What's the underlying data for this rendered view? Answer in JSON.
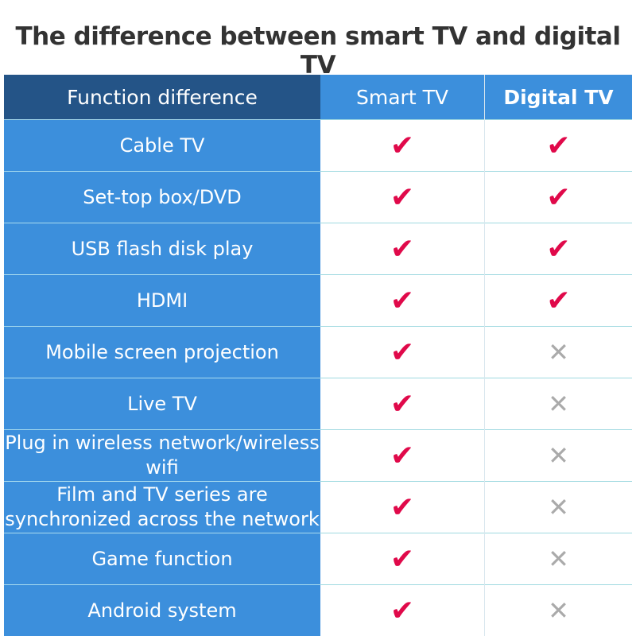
{
  "title": "The difference between smart TV and digital TV",
  "headers": [
    "Function difference",
    "Smart TV",
    "Digital TV"
  ],
  "rows": [
    {
      "feature": "Cable TV",
      "smart_tv": true,
      "digital_tv": true
    },
    {
      "feature": "Set-top box/DVD",
      "smart_tv": true,
      "digital_tv": true
    },
    {
      "feature": "USB flash disk play",
      "smart_tv": true,
      "digital_tv": true
    },
    {
      "feature": "HDMI",
      "smart_tv": true,
      "digital_tv": true
    },
    {
      "feature": "Mobile screen projection",
      "smart_tv": true,
      "digital_tv": false
    },
    {
      "feature": "Live TV",
      "smart_tv": true,
      "digital_tv": false
    },
    {
      "feature": "Plug in wireless network/wireless wifi",
      "smart_tv": true,
      "digital_tv": false
    },
    {
      "feature": "Film and TV series are synchronized across the network",
      "smart_tv": true,
      "digital_tv": false
    },
    {
      "feature": "Game function",
      "smart_tv": true,
      "digital_tv": false
    },
    {
      "feature": "Android system",
      "smart_tv": true,
      "digital_tv": false
    }
  ],
  "icons": {
    "yes": "check-icon",
    "no": "cross-icon"
  },
  "colors": {
    "header_dark": "#245487",
    "header_blue": "#3c8fdc",
    "check": "#e0094a",
    "cross": "#aaaaaa"
  }
}
